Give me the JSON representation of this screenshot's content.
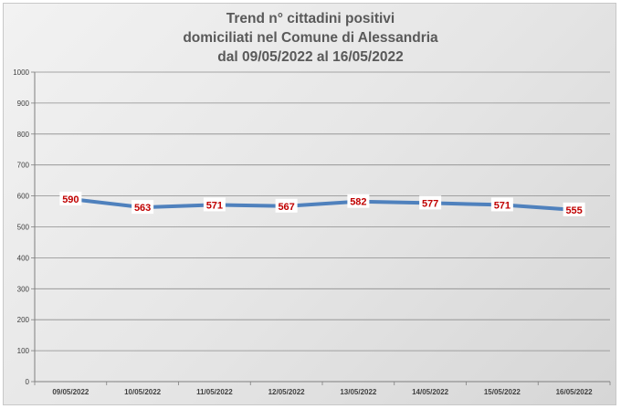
{
  "chart_data": {
    "type": "line",
    "title_lines": [
      "Trend n° cittadini positivi",
      "domiciliati nel Comune di Alessandria",
      "dal 09/05/2022 al 16/05/2022"
    ],
    "xlabel": "",
    "ylabel": "",
    "categories": [
      "09/05/2022",
      "10/05/2022",
      "11/05/2022",
      "12/05/2022",
      "13/05/2022",
      "14/05/2022",
      "15/05/2022",
      "16/05/2022"
    ],
    "series": [
      {
        "values": [
          590,
          563,
          571,
          567,
          582,
          577,
          571,
          555
        ],
        "color": "#4f81bd"
      }
    ],
    "ylim": [
      0,
      1000
    ],
    "yticks": [
      0,
      100,
      200,
      300,
      400,
      500,
      600,
      700,
      800,
      900,
      1000
    ],
    "grid": true,
    "legend": "none",
    "label_color": "#c00000"
  }
}
